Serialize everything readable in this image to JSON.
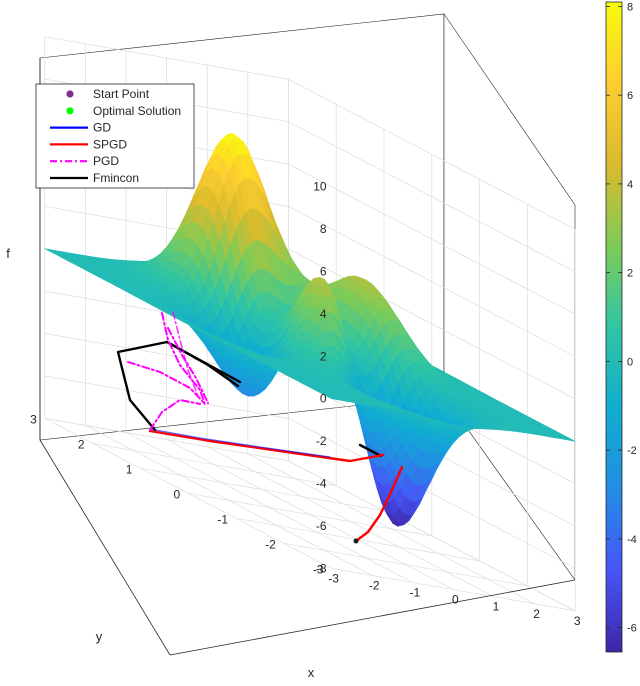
{
  "chart_data": {
    "type": "surface",
    "title": "",
    "xlabel": "x",
    "ylabel": "y",
    "zlabel": "f",
    "xlim": [
      -3,
      3
    ],
    "ylim": [
      -3,
      3
    ],
    "zlim": [
      -8,
      10
    ],
    "x_ticks": [
      -3,
      -2,
      -1,
      0,
      1,
      2,
      3
    ],
    "y_ticks": [
      -3,
      -2,
      -1,
      0,
      1,
      2,
      3
    ],
    "z_ticks": [
      -8,
      -6,
      -4,
      -2,
      0,
      2,
      4,
      6,
      8,
      10
    ],
    "colorbar": {
      "limits": [
        -6.55,
        8.1
      ],
      "ticks": [
        -6,
        -4,
        -2,
        0,
        2,
        4,
        6,
        8
      ]
    },
    "colormap": "parula",
    "grid": true,
    "legend_position": "top-left",
    "legend": [
      {
        "label": "Start Point",
        "style": "marker",
        "color": "#7e2f8e"
      },
      {
        "label": "Optimal Solution",
        "style": "marker",
        "color": "#00ff00"
      },
      {
        "label": "GD",
        "style": "solid",
        "color": "#0000ff"
      },
      {
        "label": "SPGD",
        "style": "solid",
        "color": "#ff0000"
      },
      {
        "label": "PGD",
        "style": "dashdot",
        "color": "#ff00ff"
      },
      {
        "label": "Fmincon",
        "style": "solid",
        "color": "#000000"
      }
    ],
    "surface_function": "peaks"
  }
}
